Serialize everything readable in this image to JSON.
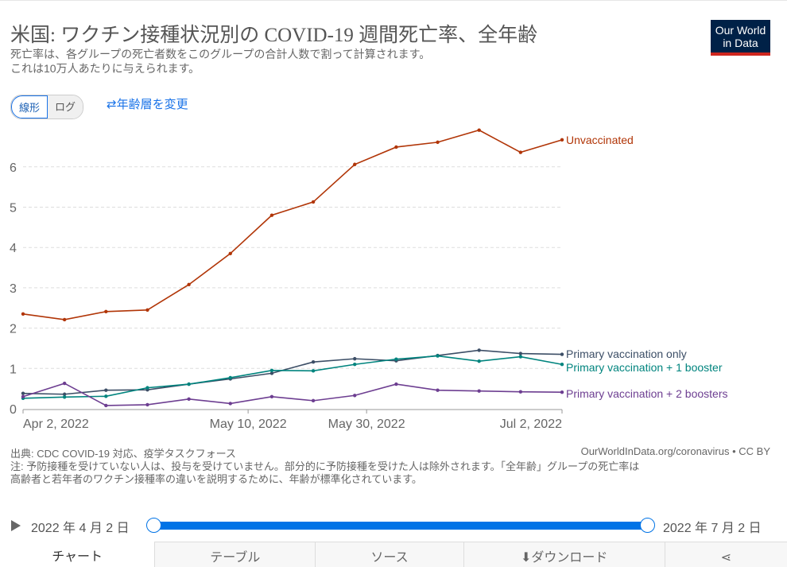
{
  "header": {
    "title": "米国: ワクチン接種状況別の COVID-19 週間死亡率、全年齢",
    "subtitle_line1": "死亡率は、各グループの死亡者数をこのグループの合計人数で割って計算されます。",
    "subtitle_line2": "これは10万人あたりに与えられます。",
    "logo_line1": "Our World",
    "logo_line2": "in Data"
  },
  "controls": {
    "linear": "線形",
    "log": "ログ",
    "change_age": "年齢層を変更",
    "change_age_icon": "swap-arrows-icon"
  },
  "chart_data": {
    "type": "line",
    "title": "米国: ワクチン接種状況別の COVID-19 週間死亡率、全年齢",
    "x": [
      "2022-04-02",
      "2022-04-09",
      "2022-04-16",
      "2022-04-23",
      "2022-04-30",
      "2022-05-07",
      "2022-05-14",
      "2022-05-21",
      "2022-05-28",
      "2022-06-04",
      "2022-06-11",
      "2022-06-18",
      "2022-06-25",
      "2022-07-02"
    ],
    "x_ticks": [
      "Apr 2, 2022",
      "May 10, 2022",
      "May 30, 2022",
      "Jul 2, 2022"
    ],
    "x_tick_dates": [
      "2022-04-02",
      "2022-05-10",
      "2022-05-30",
      "2022-07-02"
    ],
    "y_ticks": [
      "0",
      "1",
      "2",
      "3",
      "4",
      "5",
      "6"
    ],
    "ylim": [
      0,
      7
    ],
    "grid": "horizontal dashed",
    "legend": "right, inline labels",
    "series": [
      {
        "name": "Unvaccinated",
        "color": "#b13507",
        "values": [
          2.35,
          2.21,
          2.41,
          2.45,
          3.08,
          3.85,
          4.8,
          5.13,
          6.06,
          6.49,
          6.61,
          6.91,
          6.36,
          6.67
        ]
      },
      {
        "name": "Primary vaccination only",
        "color": "#3c4e66",
        "values": [
          0.38,
          0.36,
          0.46,
          0.47,
          0.61,
          0.74,
          0.88,
          1.16,
          1.24,
          1.19,
          1.32,
          1.45,
          1.37,
          1.35
        ]
      },
      {
        "name": "Primary vaccination + 1 booster",
        "color": "#00847e",
        "values": [
          0.26,
          0.29,
          0.31,
          0.52,
          0.61,
          0.77,
          0.95,
          0.94,
          1.1,
          1.23,
          1.31,
          1.18,
          1.29,
          1.1
        ]
      },
      {
        "name": "Primary vaccination + 2 boosters",
        "color": "#6d3e91",
        "values": [
          0.3,
          0.63,
          0.08,
          0.1,
          0.24,
          0.13,
          0.3,
          0.2,
          0.33,
          0.61,
          0.46,
          0.44,
          0.42,
          0.41
        ]
      }
    ]
  },
  "footer": {
    "source": "出典: CDC COVID-19 対応、疫学タスクフォース",
    "url": "OurWorldInData.org/coronavirus • CC BY",
    "note1": "注: 予防接種を受けていない人は、投与を受けていません。部分的に予防接種を受けた人は除外されます。「全年齢」グループの死亡率は",
    "note2": "高齢者と若年者のワクチン接種率の違いを説明するために、年齢が標準化されています。"
  },
  "timeline": {
    "start": "2022 年 4 月 2 日",
    "end": "2022 年 7 月 2 日",
    "play_icon": "play-icon",
    "accent": "#0073e6",
    "range_fraction": [
      0,
      1
    ]
  },
  "tabs": [
    {
      "label": "チャート"
    },
    {
      "label": "テーブル"
    },
    {
      "label": "ソース"
    },
    {
      "label": "ダウンロード",
      "icon": "download-icon"
    },
    {
      "label": "",
      "icon": "share-icon"
    }
  ]
}
